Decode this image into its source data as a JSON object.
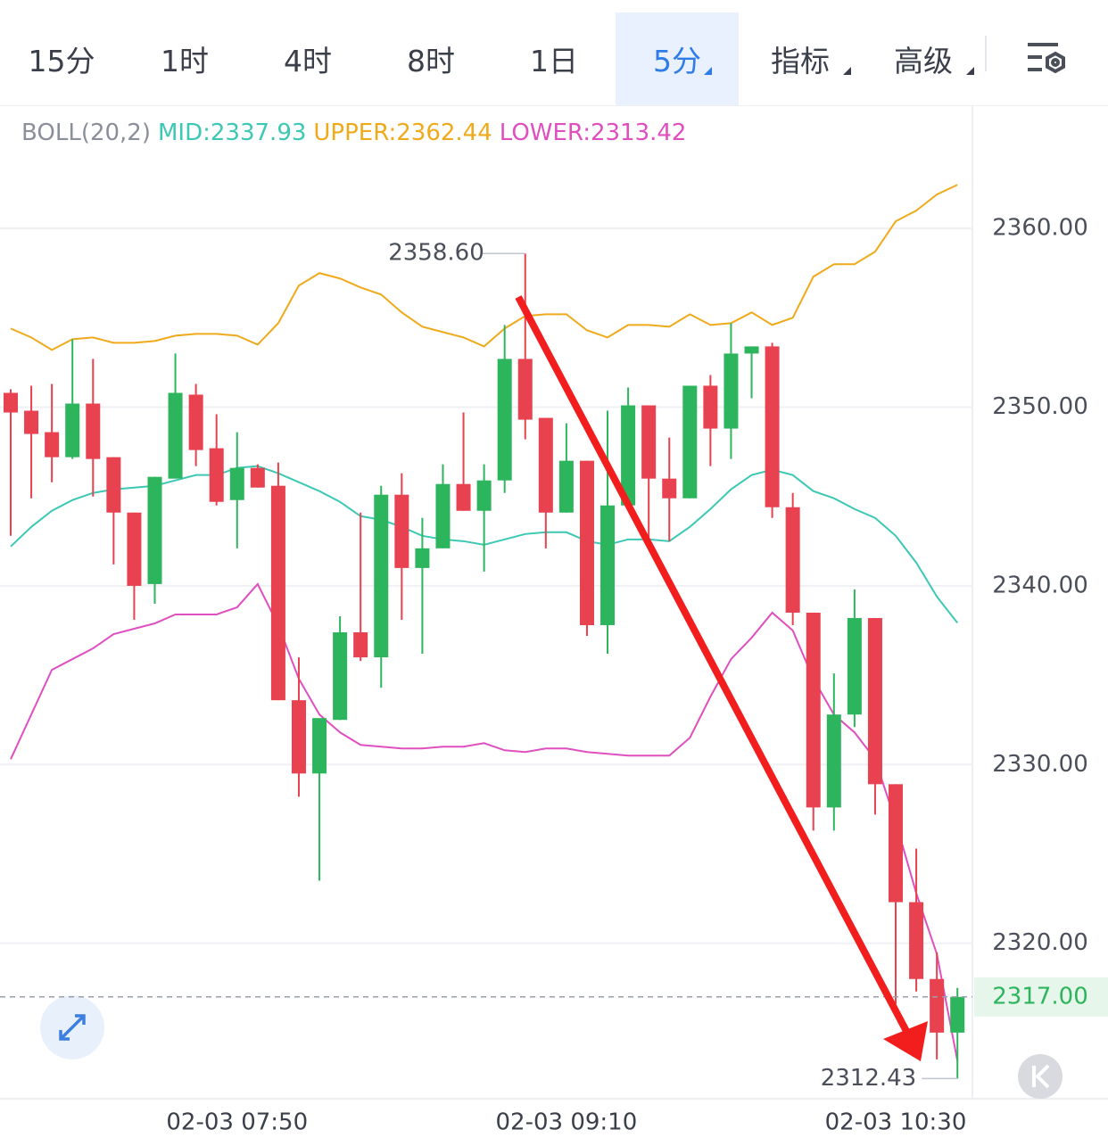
{
  "tabs": [
    "15分",
    "1时",
    "4时",
    "8时",
    "1日",
    "5分",
    "指标",
    "高级"
  ],
  "active_tab": 5,
  "chart_data": {
    "type": "candlestick",
    "indicator": "BOLL(20,2)",
    "categories": [
      null,
      null,
      null,
      null,
      null,
      null,
      null,
      null,
      null,
      null,
      null,
      "02-03 07:50",
      null,
      null,
      null,
      null,
      null,
      null,
      null,
      null,
      null,
      null,
      null,
      null,
      null,
      null,
      null,
      "02-03 09:10",
      null,
      null,
      null,
      null,
      null,
      null,
      null,
      null,
      null,
      null,
      null,
      null,
      null,
      null,
      null,
      "02-03 10:30",
      null,
      null,
      null
    ],
    "open": [
      2350.8,
      2349.8,
      2348.6,
      2347.2,
      2350.2,
      2347.2,
      2344.1,
      2340.1,
      2346.0,
      2350.7,
      2347.7,
      2344.8,
      2346.6,
      2345.6,
      2333.6,
      2329.5,
      2332.5,
      2337.4,
      2336.0,
      2345.1,
      2341.0,
      2342.1,
      2345.7,
      2344.2,
      2345.9,
      2352.7,
      2349.4,
      2344.1,
      2347.0,
      2337.8,
      2344.5,
      2350.1,
      2346.0,
      2344.9,
      2351.2,
      2348.8,
      2353.0,
      2353.4,
      2344.4,
      2338.5,
      2327.6,
      2332.8,
      2338.2,
      2328.9,
      2322.3,
      2318.0,
      2315.0
    ],
    "high": [
      2351.0,
      2351.2,
      2351.3,
      2353.8,
      2352.7,
      2347.2,
      2344.1,
      2346.1,
      2353.0,
      2351.3,
      2349.6,
      2348.6,
      2346.8,
      2346.9,
      2336.0,
      2332.6,
      2338.3,
      2344.1,
      2345.6,
      2346.3,
      2343.8,
      2346.8,
      2349.7,
      2346.8,
      2354.6,
      2358.6,
      2349.4,
      2349.1,
      2347.0,
      2349.8,
      2351.1,
      2350.1,
      2348.3,
      2351.2,
      2351.8,
      2354.7,
      2353.4,
      2353.6,
      2345.2,
      2338.5,
      2335.1,
      2339.8,
      2338.2,
      2328.9,
      2325.3,
      2319.5,
      2317.5
    ],
    "low": [
      2342.8,
      2344.9,
      2345.8,
      2347.1,
      2345.0,
      2341.2,
      2338.1,
      2339.0,
      2346.0,
      2346.7,
      2344.5,
      2342.1,
      2345.5,
      2333.6,
      2328.2,
      2323.5,
      2332.5,
      2335.8,
      2334.3,
      2338.1,
      2336.2,
      2342.1,
      2344.2,
      2340.8,
      2345.2,
      2348.2,
      2342.1,
      2344.1,
      2337.2,
      2336.2,
      2344.5,
      2342.5,
      2342.5,
      2344.9,
      2346.7,
      2347.1,
      2350.5,
      2343.8,
      2337.8,
      2326.3,
      2326.3,
      2332.1,
      2327.2,
      2316.6,
      2317.3,
      2313.5,
      2312.43
    ],
    "close": [
      2349.7,
      2348.5,
      2347.2,
      2350.2,
      2347.1,
      2344.1,
      2340.0,
      2346.1,
      2350.8,
      2347.6,
      2344.7,
      2346.6,
      2345.5,
      2333.6,
      2329.5,
      2332.6,
      2337.4,
      2336.0,
      2345.1,
      2341.0,
      2342.1,
      2345.7,
      2344.2,
      2345.9,
      2352.7,
      2349.3,
      2344.1,
      2347.0,
      2337.8,
      2344.5,
      2350.1,
      2346.0,
      2344.9,
      2351.2,
      2348.8,
      2353.0,
      2353.4,
      2344.4,
      2338.5,
      2327.6,
      2332.8,
      2338.2,
      2328.9,
      2322.3,
      2318.0,
      2315.0,
      2317.0
    ],
    "up_color": "#2db55d",
    "down_color": "#e8414f",
    "series": [
      {
        "label": "MID:2337.93",
        "color": "#3cc8b4",
        "values": [
          2342.2,
          2343.3,
          2344.2,
          2344.8,
          2345.2,
          2345.4,
          2345.5,
          2345.6,
          2345.9,
          2346.2,
          2346.2,
          2346.6,
          2346.7,
          2346.3,
          2345.8,
          2345.3,
          2344.7,
          2343.9,
          2343.7,
          2343.3,
          2342.8,
          2342.6,
          2342.5,
          2342.3,
          2342.6,
          2342.9,
          2343.0,
          2343.0,
          2342.5,
          2342.3,
          2342.6,
          2342.6,
          2342.5,
          2343.3,
          2344.3,
          2345.4,
          2346.2,
          2346.5,
          2346.2,
          2345.3,
          2344.9,
          2344.3,
          2343.8,
          2342.8,
          2341.3,
          2339.4,
          2337.93
        ]
      },
      {
        "label": "UPPER:2362.44",
        "color": "#efaa1b",
        "values": [
          2354.4,
          2353.9,
          2353.2,
          2353.8,
          2353.9,
          2353.6,
          2353.6,
          2353.7,
          2354.0,
          2354.1,
          2354.1,
          2354.0,
          2353.5,
          2354.7,
          2356.8,
          2357.5,
          2357.2,
          2356.7,
          2356.3,
          2355.3,
          2354.5,
          2354.2,
          2353.9,
          2353.4,
          2354.4,
          2355.1,
          2355.2,
          2355.2,
          2354.3,
          2353.9,
          2354.6,
          2354.6,
          2354.5,
          2355.2,
          2354.6,
          2354.7,
          2355.3,
          2354.6,
          2355.0,
          2357.3,
          2358.0,
          2358.0,
          2358.7,
          2360.4,
          2361.0,
          2361.9,
          2362.44
        ]
      },
      {
        "label": "LOWER:2313.42",
        "color": "#e04fc0",
        "values": [
          2330.3,
          2332.8,
          2335.3,
          2335.9,
          2336.5,
          2337.3,
          2337.6,
          2337.9,
          2338.4,
          2338.4,
          2338.4,
          2338.8,
          2340.1,
          2337.8,
          2334.8,
          2332.8,
          2331.8,
          2331.1,
          2331.0,
          2330.9,
          2330.9,
          2331.0,
          2331.0,
          2331.2,
          2330.8,
          2330.7,
          2330.9,
          2330.9,
          2330.7,
          2330.6,
          2330.5,
          2330.5,
          2330.5,
          2331.5,
          2333.8,
          2335.9,
          2337.1,
          2338.5,
          2337.5,
          2334.8,
          2332.8,
          2331.8,
          2330.3,
          2326.8,
          2322.8,
          2319.4,
          2313.42
        ]
      }
    ],
    "ylim": [
      2311.4,
      2364.05
    ],
    "yticks": [
      {
        "value": 2320,
        "label": "2320.00"
      },
      {
        "value": 2330,
        "label": "2330.00"
      },
      {
        "value": 2340,
        "label": "2340.00"
      },
      {
        "value": 2350,
        "label": "2350.00"
      },
      {
        "value": 2360,
        "label": "2360.00"
      }
    ],
    "grid": true,
    "high_marker": {
      "value": 2358.6,
      "label": "2358.60"
    },
    "low_marker": {
      "value": 2312.43,
      "label": "2312.43"
    },
    "last_price": {
      "value": 2317,
      "label": "2317.00"
    }
  }
}
